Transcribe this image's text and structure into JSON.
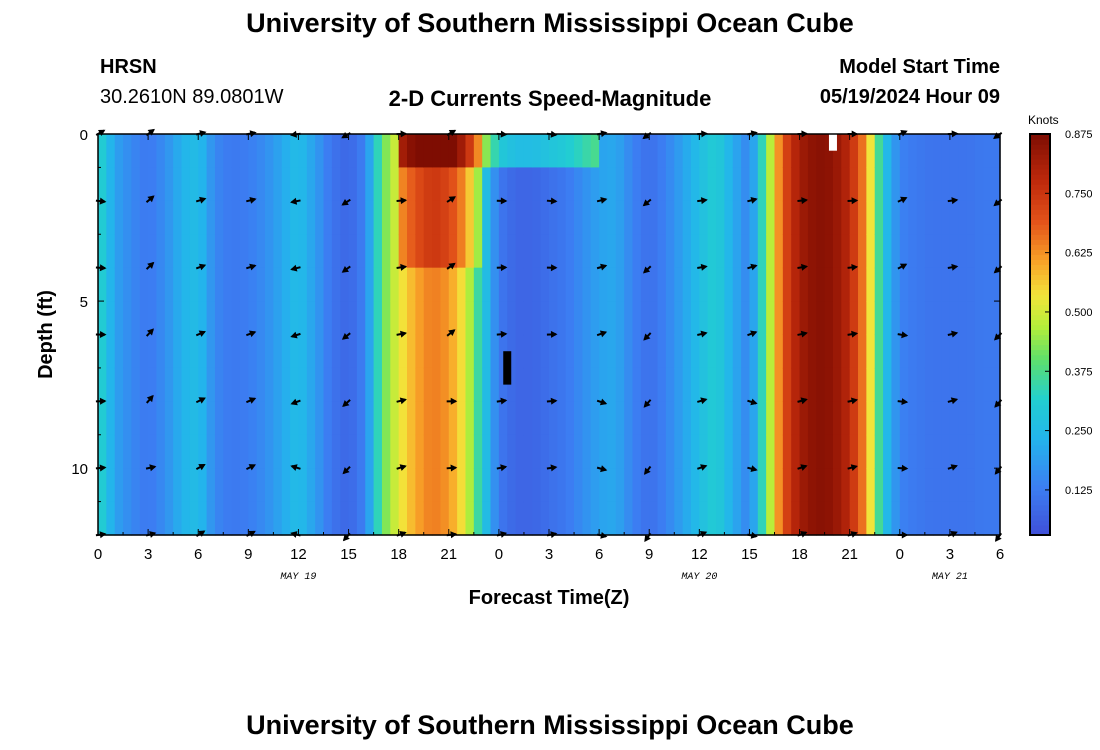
{
  "header": {
    "title": "University of Southern Mississippi Ocean Cube",
    "station": "HRSN",
    "location": "30.2610N  89.0801W",
    "subtitle": "2-D Currents Speed-Magnitude",
    "model_start_label": "Model Start Time",
    "model_start_value": "05/19/2024 Hour 09"
  },
  "footer": {
    "title": "University of Southern Mississippi Ocean Cube"
  },
  "chart_data": {
    "type": "heatmap",
    "title": "2-D Currents Speed-Magnitude",
    "xlabel": "Forecast Time(Z)",
    "ylabel": "Depth (ft)",
    "x_range_hours": [
      0,
      54
    ],
    "y_range_ft": [
      0,
      12
    ],
    "x_ticks": [
      {
        "h": 0,
        "label": "0"
      },
      {
        "h": 3,
        "label": "3"
      },
      {
        "h": 6,
        "label": "6"
      },
      {
        "h": 9,
        "label": "9"
      },
      {
        "h": 12,
        "label": "12"
      },
      {
        "h": 15,
        "label": "15"
      },
      {
        "h": 18,
        "label": "18"
      },
      {
        "h": 21,
        "label": "21"
      },
      {
        "h": 24,
        "label": "0"
      },
      {
        "h": 27,
        "label": "3"
      },
      {
        "h": 30,
        "label": "6"
      },
      {
        "h": 33,
        "label": "9"
      },
      {
        "h": 36,
        "label": "12"
      },
      {
        "h": 39,
        "label": "15"
      },
      {
        "h": 42,
        "label": "18"
      },
      {
        "h": 45,
        "label": "21"
      },
      {
        "h": 48,
        "label": "0"
      },
      {
        "h": 51,
        "label": "3"
      },
      {
        "h": 54,
        "label": "6"
      }
    ],
    "date_labels": [
      {
        "h": 12,
        "label": "MAY 19"
      },
      {
        "h": 36,
        "label": "MAY 20"
      },
      {
        "h": 51,
        "label": "MAY 21"
      }
    ],
    "y_ticks": [
      {
        "d": 0,
        "label": "0"
      },
      {
        "d": 5,
        "label": "5"
      },
      {
        "d": 10,
        "label": "10"
      }
    ],
    "colorbar": {
      "unit": "Knots",
      "range": [
        0.03,
        0.875
      ],
      "ticks": [
        "0.125",
        "0.250",
        "0.375",
        "0.500",
        "0.625",
        "0.750",
        "0.875"
      ],
      "tick_values": [
        0.125,
        0.25,
        0.375,
        0.5,
        0.625,
        0.75,
        0.875
      ]
    },
    "speed_profile_by_hour": [
      {
        "h": 0,
        "speed": 0.34
      },
      {
        "h": 1,
        "speed": 0.2
      },
      {
        "h": 2,
        "speed": 0.15
      },
      {
        "h": 3,
        "speed": 0.12
      },
      {
        "h": 4,
        "speed": 0.16
      },
      {
        "h": 5,
        "speed": 0.23
      },
      {
        "h": 6,
        "speed": 0.26
      },
      {
        "h": 7,
        "speed": 0.15
      },
      {
        "h": 8,
        "speed": 0.12
      },
      {
        "h": 9,
        "speed": 0.13
      },
      {
        "h": 10,
        "speed": 0.16
      },
      {
        "h": 11,
        "speed": 0.21
      },
      {
        "h": 12,
        "speed": 0.26
      },
      {
        "h": 13,
        "speed": 0.19
      },
      {
        "h": 14,
        "speed": 0.11
      },
      {
        "h": 15,
        "speed": 0.08
      },
      {
        "h": 16,
        "speed": 0.14
      },
      {
        "h": 17,
        "speed": 0.4
      },
      {
        "h": 18,
        "speed": 0.52
      },
      {
        "h": 19,
        "speed": 0.6
      },
      {
        "h": 20,
        "speed": 0.65
      },
      {
        "h": 21,
        "speed": 0.62
      },
      {
        "h": 22,
        "speed": 0.52
      },
      {
        "h": 23,
        "speed": 0.3
      },
      {
        "h": 24,
        "speed": 0.12
      },
      {
        "h": 25,
        "speed": 0.08
      },
      {
        "h": 26,
        "speed": 0.08
      },
      {
        "h": 27,
        "speed": 0.1
      },
      {
        "h": 28,
        "speed": 0.12
      },
      {
        "h": 29,
        "speed": 0.16
      },
      {
        "h": 30,
        "speed": 0.2
      },
      {
        "h": 31,
        "speed": 0.21
      },
      {
        "h": 32,
        "speed": 0.14
      },
      {
        "h": 33,
        "speed": 0.1
      },
      {
        "h": 34,
        "speed": 0.14
      },
      {
        "h": 35,
        "speed": 0.2
      },
      {
        "h": 36,
        "speed": 0.26
      },
      {
        "h": 37,
        "speed": 0.31
      },
      {
        "h": 38,
        "speed": 0.22
      },
      {
        "h": 39,
        "speed": 0.14
      },
      {
        "h": 40,
        "speed": 0.4
      },
      {
        "h": 41,
        "speed": 0.7
      },
      {
        "h": 42,
        "speed": 0.82
      },
      {
        "h": 43,
        "speed": 0.86
      },
      {
        "h": 44,
        "speed": 0.85
      },
      {
        "h": 45,
        "speed": 0.78
      },
      {
        "h": 46,
        "speed": 0.62
      },
      {
        "h": 47,
        "speed": 0.28
      },
      {
        "h": 48,
        "speed": 0.14
      },
      {
        "h": 49,
        "speed": 0.12
      },
      {
        "h": 50,
        "speed": 0.11
      },
      {
        "h": 51,
        "speed": 0.11
      },
      {
        "h": 52,
        "speed": 0.11
      },
      {
        "h": 53,
        "speed": 0.12
      },
      {
        "h": 54,
        "speed": 0.12
      }
    ],
    "surface_boost": [
      {
        "h_from": 18,
        "h_to": 30,
        "depth_max_ft": 1,
        "add": 0.18
      },
      {
        "h_from": 18,
        "h_to": 23,
        "depth_max_ft": 4,
        "add": 0.1
      }
    ],
    "vector_depths_ft": [
      0,
      2,
      4,
      6,
      8,
      10,
      12
    ],
    "vector_hours": [
      0,
      3,
      6,
      9,
      12,
      15,
      18,
      21,
      24,
      27,
      30,
      33,
      36,
      39,
      42,
      45,
      48,
      51,
      54
    ],
    "vector_directions_deg_by_hour": [
      80,
      60,
      70,
      60,
      270,
      235,
      70,
      70,
      90,
      80,
      90,
      230,
      70,
      90,
      85,
      75,
      80,
      85,
      220
    ],
    "missing_cells": [
      {
        "h": 24.5,
        "d_from": 6.5,
        "d_to": 7.5
      },
      {
        "h": 44.0,
        "d_from": 0,
        "d_to": 0.5
      }
    ]
  }
}
